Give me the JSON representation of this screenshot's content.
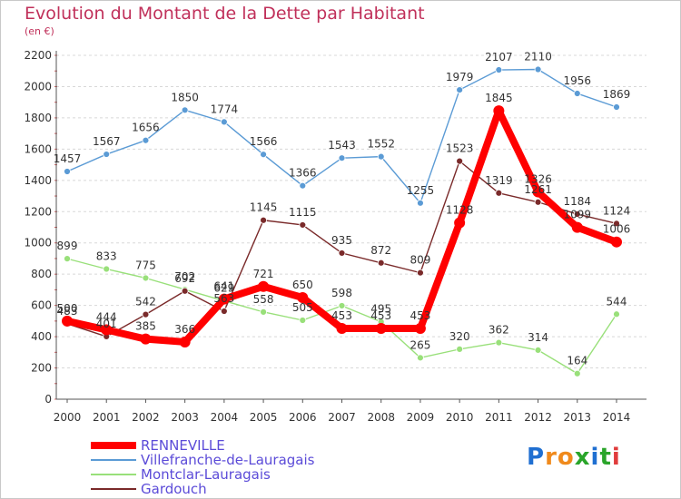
{
  "title": "Evolution du Montant de la Dette par Habitant",
  "unit": "(en €)",
  "logo": "Proxiti",
  "chart_data": {
    "type": "line",
    "title": "Evolution du Montant de la Dette par Habitant",
    "ylabel": "(en €)",
    "x": [
      "2000",
      "2001",
      "2002",
      "2003",
      "2004",
      "2005",
      "2006",
      "2007",
      "2008",
      "2009",
      "2010",
      "2011",
      "2012",
      "2013",
      "2014"
    ],
    "ylim": [
      0,
      2200
    ],
    "yticks": [
      0,
      200,
      400,
      600,
      800,
      1000,
      1200,
      1400,
      1600,
      1800,
      2000,
      2200
    ],
    "grid": true,
    "legend_position": "bottom",
    "series": [
      {
        "name": "RENNEVILLE",
        "color": "#ff0000",
        "values": [
          500,
          444,
          385,
          366,
          641,
          721,
          650,
          453,
          453,
          453,
          1128,
          1845,
          1326,
          1099,
          1006
        ]
      },
      {
        "name": "Villefranche-de-Lauragais",
        "color": "#5b9bd5",
        "values": [
          1457,
          1567,
          1656,
          1850,
          1774,
          1566,
          1366,
          1543,
          1552,
          1255,
          1979,
          2107,
          2110,
          1956,
          1869
        ]
      },
      {
        "name": "Montclar-Lauragais",
        "color": "#99e07a",
        "values": [
          899,
          833,
          775,
          702,
          629,
          558,
          505,
          598,
          495,
          265,
          320,
          362,
          314,
          164,
          544
        ]
      },
      {
        "name": "Gardouch",
        "color": "#7a2a2a",
        "values": [
          483,
          401,
          542,
          692,
          563,
          1145,
          1115,
          935,
          872,
          809,
          1523,
          1319,
          1261,
          1184,
          1124
        ]
      }
    ]
  }
}
